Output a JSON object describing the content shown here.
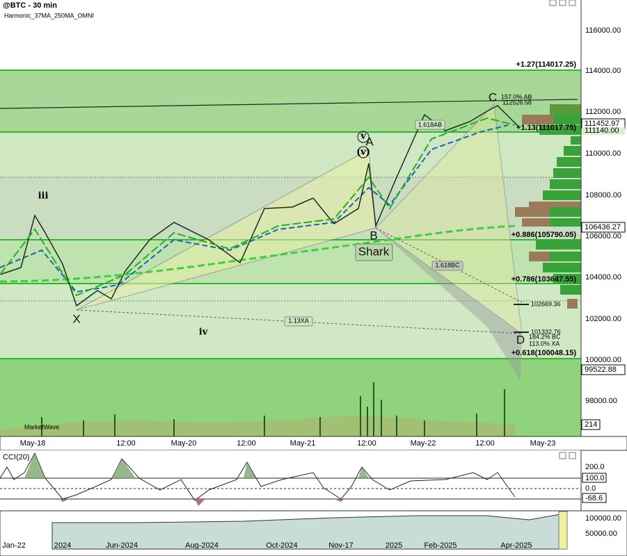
{
  "header": {
    "title": "@BTC - 30 min",
    "study": "Harmonic_37MA_250MA_OMNI"
  },
  "price_axis": {
    "ticks": [
      "116000.00",
      "114000.00",
      "112000.00",
      "110000.00",
      "108000.00",
      "106000.00",
      "104000.00",
      "102000.00",
      "100000.00",
      "98000.00"
    ],
    "markers": [
      "111452.97",
      "111140.00",
      "106436.27",
      "99522.88",
      "214"
    ]
  },
  "fib_levels": [
    "+1.27(114017.25)",
    "+1.13(111017.75)",
    "+0.886(105790.05)",
    "+0.786(103647.55)",
    "+0.618(100048.15)"
  ],
  "pattern": {
    "points": [
      "X",
      "A",
      "B",
      "C",
      "D"
    ],
    "name": "Shark",
    "waves": [
      "iii",
      "iv",
      "(v)",
      "v"
    ],
    "ratios": [
      "1.618AB",
      "1.618BC",
      "1.13XA"
    ],
    "notes": [
      "157.0% AB",
      "112526.58",
      "102669.36",
      "101332.76",
      "184.2% BC",
      "113.0% XA"
    ]
  },
  "volume_label": "MarketWave",
  "time_axis": [
    "May-18",
    "12:00",
    "May-20",
    "12:00",
    "May-21",
    "12:00",
    "May-22",
    "12:00",
    "May-23"
  ],
  "cci": {
    "title": "CCI(20)",
    "ticks": [
      "200.0",
      "100.0",
      "0.0",
      "-68.6"
    ]
  },
  "navigator": {
    "labels": [
      "Jan-22",
      "2024",
      "Jun-2024",
      "Aug-2024",
      "Oct-2024",
      "Nov-17",
      "2025",
      "Feb-2025",
      "Apr-2025"
    ],
    "ticks": [
      "100000.00",
      "50000.00"
    ]
  }
}
